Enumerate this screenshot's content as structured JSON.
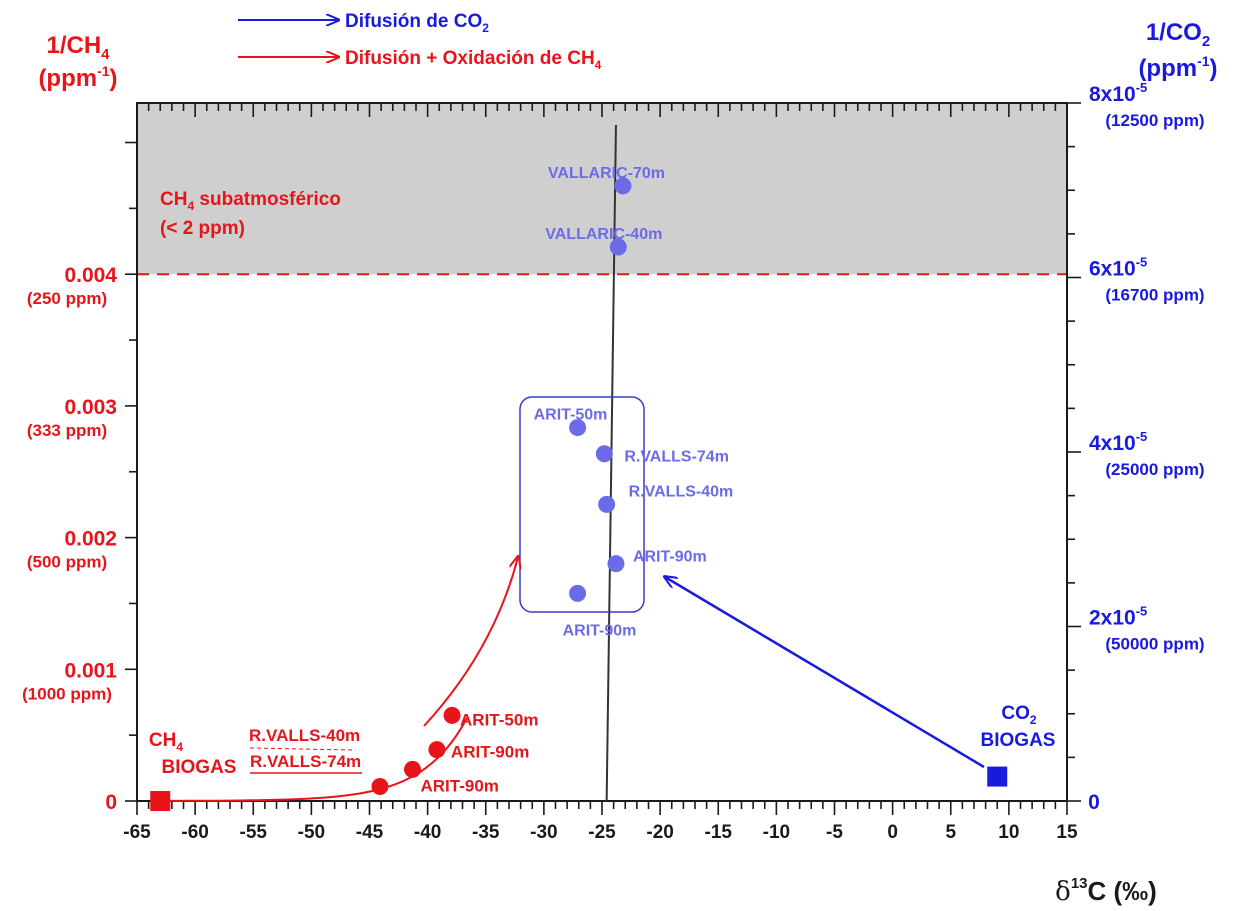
{
  "chart_data": {
    "type": "scatter",
    "colors": {
      "methane": "#e8141b",
      "co2": "#1a1adf",
      "co2_points": "#6b6bea",
      "shade": "#cfcfcf",
      "axis": "#1a1a1a"
    },
    "legend": {
      "co2": {
        "prefix": "Difusión de CO",
        "sub": "2"
      },
      "ch4": {
        "prefix": "Difusión + Oxidación de CH",
        "sub": "4"
      }
    },
    "left_axis": {
      "title_line1": {
        "prefix": "1/CH",
        "sub": "4"
      },
      "title_line2": {
        "prefix": "(ppm",
        "sup": "-1",
        "suffix": ")"
      },
      "range": [
        0,
        0.0053
      ],
      "ticks": [
        {
          "value": 0,
          "label": "0",
          "sublabel": ""
        },
        {
          "value": 0.001,
          "label": "0.001",
          "sublabel": "(1000 ppm)"
        },
        {
          "value": 0.002,
          "label": "0.002",
          "sublabel": "(500 ppm)"
        },
        {
          "value": 0.003,
          "label": "0.003",
          "sublabel": "(333 ppm)"
        },
        {
          "value": 0.004,
          "label": "0.004",
          "sublabel": "(250 ppm)"
        }
      ]
    },
    "right_axis": {
      "title_line1": {
        "prefix": "1/CO",
        "sub": "2"
      },
      "title_line2": {
        "prefix": "(ppm",
        "sup": "-1",
        "suffix": ")"
      },
      "range": [
        0,
        8e-05
      ],
      "ticks": [
        {
          "value": 0,
          "base": "0",
          "exp": "",
          "sublabel": ""
        },
        {
          "value": 2e-05,
          "base": "2x10",
          "exp": "-5",
          "sublabel": "(50000 ppm)"
        },
        {
          "value": 4e-05,
          "base": "4x10",
          "exp": "-5",
          "sublabel": "(25000 ppm)"
        },
        {
          "value": 6e-05,
          "base": "6x10",
          "exp": "-5",
          "sublabel": "(16700 ppm)"
        },
        {
          "value": 8e-05,
          "base": "8x10",
          "exp": "-5",
          "sublabel": "(12500 ppm)"
        }
      ]
    },
    "x_axis": {
      "label": {
        "delta": "δ",
        "sup": "13",
        "rest": "C (‰)"
      },
      "range": [
        -65,
        15
      ],
      "ticks": [
        -65,
        -60,
        -55,
        -50,
        -45,
        -40,
        -35,
        -30,
        -25,
        -20,
        -15,
        -10,
        -5,
        0,
        5,
        10,
        15
      ]
    },
    "shaded_region": {
      "y_from": 0.004,
      "label_line1": {
        "prefix": "CH",
        "sub": "4",
        "suffix": " subatmosférico"
      },
      "label_line2": "(< 2 ppm)"
    },
    "ch4_series": [
      {
        "x": -44.1,
        "y": 0.00011,
        "label": ""
      },
      {
        "x": -41.3,
        "y": 0.00024,
        "label": "ARIT-90m"
      },
      {
        "x": -39.2,
        "y": 0.00039,
        "label": "ARIT-90m"
      },
      {
        "x": -37.9,
        "y": 0.00065,
        "label": "ARIT-50m"
      }
    ],
    "ch4_extra_labels": [
      "R.VALLS-40m",
      "R.VALLS-74m"
    ],
    "ch4_biogas": {
      "x": -63,
      "y": 0,
      "label_line1": {
        "prefix": "CH",
        "sub": "4"
      },
      "label_line2": "BIOGAS"
    },
    "co2_series": [
      {
        "x": -23.2,
        "y": 7.05e-05,
        "label": "VALLARIC-70m"
      },
      {
        "x": -23.6,
        "y": 6.35e-05,
        "label": "VALLARIC-40m"
      },
      {
        "x": -27.1,
        "y": 4.28e-05,
        "label": "ARIT-50m"
      },
      {
        "x": -24.8,
        "y": 3.98e-05,
        "label": "R.VALLS-74m"
      },
      {
        "x": -24.6,
        "y": 3.4e-05,
        "label": "R.VALLS-40m"
      },
      {
        "x": -23.8,
        "y": 2.72e-05,
        "label": "ARIT-90m"
      },
      {
        "x": -27.1,
        "y": 2.38e-05,
        "label": "ARIT-90m"
      }
    ],
    "co2_biogas": {
      "x": 9,
      "y": 2.8e-06,
      "label_line1": {
        "prefix": "CO",
        "sub": "2"
      },
      "label_line2": "BIOGAS"
    },
    "reference_line": {
      "x_top": -23.8,
      "x_bottom": -24.6
    }
  }
}
